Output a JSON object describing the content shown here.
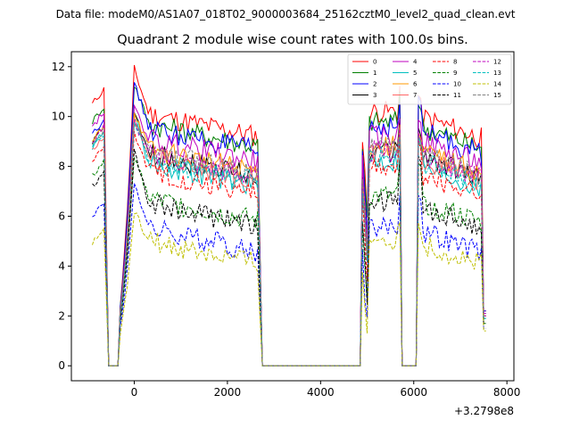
{
  "suptitle": "Data file: modeM0/AS1A07_018T02_9000003684_25162cztM0_level2_quad_clean.evt",
  "chart_data": {
    "type": "line",
    "title": "Quadrant 2 module wise count rates with 100.0s bins.",
    "xlabel": "",
    "ylabel": "",
    "x_offset_label": "+3.2798e8",
    "xlim": [
      -1350,
      8150
    ],
    "ylim": [
      -0.6,
      12.6
    ],
    "x_ticks": [
      0,
      2000,
      4000,
      6000,
      8000
    ],
    "x_tick_labels": [
      "0",
      "2000",
      "4000",
      "6000",
      "8000"
    ],
    "y_ticks": [
      0,
      2,
      4,
      6,
      8,
      10,
      12
    ],
    "y_tick_labels": [
      "0",
      "2",
      "4",
      "6",
      "8",
      "10",
      "12"
    ],
    "grid": false,
    "legend_location": "top-right",
    "legend_columns": 4,
    "segments": [
      {
        "start": -900,
        "end": -650
      },
      {
        "start": -550,
        "end": 2650
      },
      {
        "start": 4850,
        "end": 5750
      },
      {
        "start": 6050,
        "end": 7550
      }
    ],
    "zero_gaps": [
      {
        "from": -550,
        "to": -350
      },
      {
        "from": 2750,
        "to": 4850
      },
      {
        "from": 5750,
        "to": 6050
      }
    ],
    "series": [
      {
        "name": "0",
        "color": "#ff0000",
        "dash": "solid",
        "level": 9.6,
        "peak1": 11.9,
        "peak2": 11.2,
        "peak3": 11.1,
        "head": 10.5,
        "end_val": 2.2
      },
      {
        "name": "1",
        "color": "#008000",
        "dash": "solid",
        "level": 9.2,
        "peak1": 11.3,
        "peak2": 11.0,
        "peak3": 10.8,
        "head": 9.8,
        "end_val": 2.1
      },
      {
        "name": "2",
        "color": "#0000ff",
        "dash": "solid",
        "level": 9.0,
        "peak1": 11.4,
        "peak2": 10.6,
        "peak3": 11.0,
        "head": 9.3,
        "end_val": 2.2
      },
      {
        "name": "3",
        "color": "#000000",
        "dash": "solid",
        "level": 8.0,
        "peak1": 10.1,
        "peak2": 10.0,
        "peak3": 9.8,
        "head": 9.0,
        "end_val": 2.0
      },
      {
        "name": "4",
        "color": "#bf00bf",
        "dash": "solid",
        "level": 8.6,
        "peak1": 10.3,
        "peak2": 10.0,
        "peak3": 10.2,
        "head": 9.6,
        "end_val": 2.1
      },
      {
        "name": "5",
        "color": "#00bfbf",
        "dash": "solid",
        "level": 7.6,
        "peak1": 10.0,
        "peak2": 9.6,
        "peak3": 9.4,
        "head": 8.8,
        "end_val": 1.9
      },
      {
        "name": "6",
        "color": "#ff9900",
        "dash": "solid",
        "level": 8.2,
        "peak1": 10.2,
        "peak2": 9.8,
        "peak3": 9.6,
        "head": 9.0,
        "end_val": 2.0
      },
      {
        "name": "7",
        "color": "#ff6666",
        "dash": "solid",
        "level": 7.9,
        "peak1": 9.9,
        "peak2": 9.5,
        "peak3": 9.4,
        "head": 8.6,
        "end_val": 2.0
      },
      {
        "name": "8",
        "color": "#ff0000",
        "dash": "dashed",
        "level": 7.3,
        "peak1": 9.3,
        "peak2": 9.0,
        "peak3": 9.2,
        "head": 8.2,
        "end_val": 1.9
      },
      {
        "name": "9",
        "color": "#008000",
        "dash": "dashed",
        "level": 6.2,
        "peak1": 8.5,
        "peak2": 8.2,
        "peak3": 8.4,
        "head": 7.6,
        "end_val": 1.7
      },
      {
        "name": "10",
        "color": "#0000ff",
        "dash": "dashed",
        "level": 5.0,
        "peak1": 7.4,
        "peak2": 6.8,
        "peak3": 7.2,
        "head": 6.0,
        "end_val": 1.5
      },
      {
        "name": "11",
        "color": "#000000",
        "dash": "dashed",
        "level": 6.0,
        "peak1": 8.7,
        "peak2": 8.4,
        "peak3": 8.6,
        "head": 7.2,
        "end_val": 1.7
      },
      {
        "name": "12",
        "color": "#bf00bf",
        "dash": "dashed",
        "level": 8.0,
        "peak1": 9.8,
        "peak2": 9.5,
        "peak3": 9.6,
        "head": 9.0,
        "end_val": 2.0
      },
      {
        "name": "13",
        "color": "#00bfbf",
        "dash": "dashed",
        "level": 7.8,
        "peak1": 9.6,
        "peak2": 9.2,
        "peak3": 9.3,
        "head": 8.7,
        "end_val": 1.9
      },
      {
        "name": "14",
        "color": "#bfbf00",
        "dash": "dashed",
        "level": 4.5,
        "peak1": 6.2,
        "peak2": 5.8,
        "peak3": 5.9,
        "head": 4.9,
        "end_val": 1.4
      },
      {
        "name": "15",
        "color": "#808080",
        "dash": "dashed",
        "level": 8.1,
        "peak1": 9.7,
        "peak2": 9.4,
        "peak3": 9.5,
        "head": 8.8,
        "end_val": 2.0
      }
    ]
  }
}
